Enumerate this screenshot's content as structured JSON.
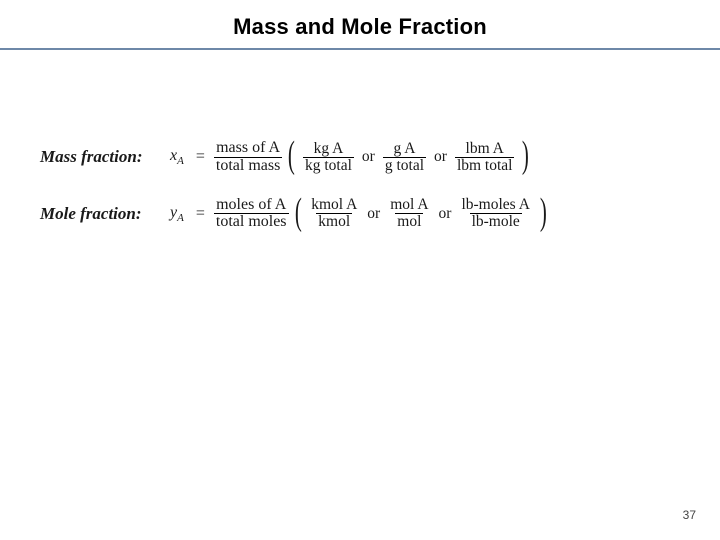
{
  "title": "Mass and Mole Fraction",
  "rule_color": "#6e88a8",
  "page_number": "37",
  "rows": [
    {
      "label": "Mass fraction:",
      "symbol": "x",
      "subscript": "A",
      "main_frac": {
        "num": "mass of A",
        "den": "total mass"
      },
      "alts": [
        {
          "num": "kg A",
          "den": "kg total"
        },
        {
          "num": "g A",
          "den": "g total"
        },
        {
          "num": "lbm A",
          "den": "lbm total"
        }
      ]
    },
    {
      "label": "Mole fraction:",
      "symbol": "y",
      "subscript": "A",
      "main_frac": {
        "num": "moles of A",
        "den": "total moles"
      },
      "alts": [
        {
          "num": "kmol A",
          "den": "kmol"
        },
        {
          "num": "mol A",
          "den": "mol"
        },
        {
          "num": "lb-moles A",
          "den": "lb-mole"
        }
      ]
    }
  ],
  "or_text": "or",
  "equals": "="
}
